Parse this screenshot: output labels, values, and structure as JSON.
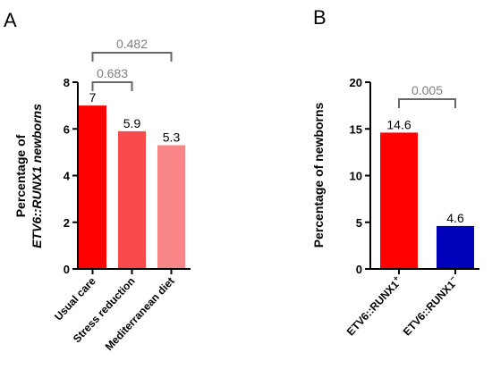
{
  "chart_data": [
    {
      "panel": "A",
      "type": "bar",
      "ylabel_line1": "Percentage of",
      "ylabel_line2": "ETV6::RUNX1 newborns",
      "ylim": [
        0,
        8
      ],
      "yticks": [
        "0",
        "2",
        "4",
        "6",
        "8"
      ],
      "categories": [
        "Usual care",
        "Stress reduction",
        "Mediterranean diet"
      ],
      "values": [
        7,
        5.9,
        5.3
      ],
      "data_labels": [
        "7",
        "5.9",
        "5.3"
      ],
      "colors": [
        "#ff0000",
        "#f84a4a",
        "#f98686"
      ],
      "brackets": [
        {
          "from": 0,
          "to": 1,
          "label": "0.683"
        },
        {
          "from": 0,
          "to": 2,
          "label": "0.482"
        }
      ]
    },
    {
      "panel": "B",
      "type": "bar",
      "ylabel": "Percentage of newborns",
      "ylim": [
        0,
        20
      ],
      "yticks": [
        "0",
        "5",
        "10",
        "15",
        "20"
      ],
      "categories": [
        "ETV6::RUNX1",
        "ETV6::RUNX1"
      ],
      "category_superscripts": [
        "+",
        "−"
      ],
      "values": [
        14.6,
        4.6
      ],
      "data_labels": [
        "14.6",
        "4.6"
      ],
      "colors": [
        "#ff0000",
        "#0000bb"
      ],
      "brackets": [
        {
          "from": 0,
          "to": 1,
          "label": "0.005"
        }
      ]
    }
  ]
}
